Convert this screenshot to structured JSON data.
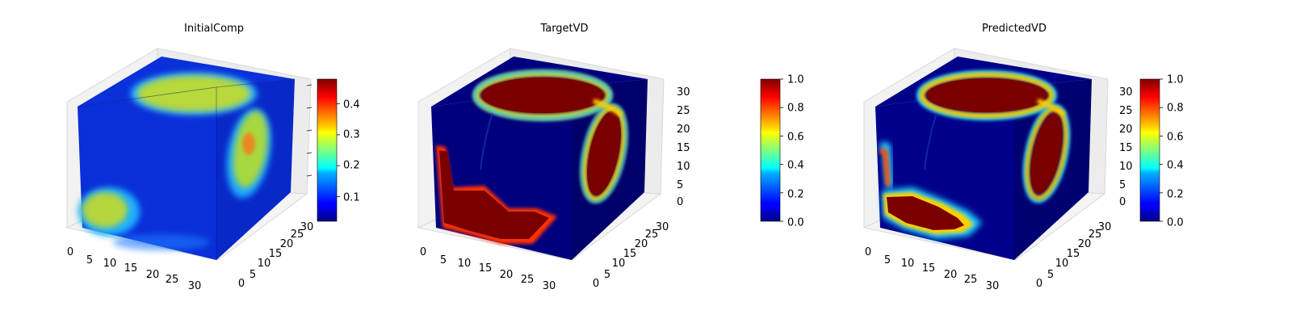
{
  "chart_data": [
    {
      "type": "voxel-3d",
      "title": "InitialComp",
      "x_ticks": [
        "0",
        "5",
        "10",
        "15",
        "20",
        "25",
        "30"
      ],
      "y_ticks": [
        "0",
        "5",
        "10",
        "15",
        "20",
        "25",
        "30"
      ],
      "z_ticks": [],
      "xlim": [
        0,
        32
      ],
      "ylim": [
        0,
        32
      ],
      "zlim": [
        0,
        32
      ],
      "colormap": "jet",
      "colorbar": {
        "ticks": [
          "0.1",
          "0.2",
          "0.3",
          "0.4"
        ],
        "tick_values": [
          0.1,
          0.2,
          0.3,
          0.4
        ],
        "range": [
          0.02,
          0.48
        ]
      },
      "features": [
        {
          "face": "top",
          "shape": "ellipse",
          "value": 0.33
        },
        {
          "face": "right",
          "shape": "ellipse",
          "value": 0.38
        },
        {
          "face": "front",
          "shape": "blob",
          "value": 0.3
        }
      ],
      "background_value": 0.05
    },
    {
      "type": "voxel-3d",
      "title": "TargetVD",
      "x_ticks": [
        "0",
        "5",
        "10",
        "15",
        "20",
        "25",
        "30"
      ],
      "y_ticks": [
        "0",
        "5",
        "10",
        "15",
        "20",
        "25",
        "30"
      ],
      "z_ticks": [
        "0",
        "5",
        "10",
        "15",
        "20",
        "25",
        "30"
      ],
      "xlim": [
        0,
        32
      ],
      "ylim": [
        0,
        32
      ],
      "zlim": [
        0,
        32
      ],
      "colormap": "jet",
      "colorbar": {
        "ticks": [
          "0.0",
          "0.2",
          "0.4",
          "0.6",
          "0.8",
          "1.0"
        ],
        "tick_values": [
          0,
          0.2,
          0.4,
          0.6,
          0.8,
          1.0
        ],
        "range": [
          0,
          1
        ]
      },
      "features": [
        {
          "face": "top",
          "shape": "ellipse",
          "value": 1.0
        },
        {
          "face": "right",
          "shape": "ellipse",
          "value": 1.0
        },
        {
          "face": "front",
          "shape": "blob",
          "value": 1.0
        }
      ],
      "background_value": 0.0
    },
    {
      "type": "voxel-3d",
      "title": "PredictedVD",
      "x_ticks": [
        "0",
        "5",
        "10",
        "15",
        "20",
        "25",
        "30"
      ],
      "y_ticks": [
        "0",
        "5",
        "10",
        "15",
        "20",
        "25",
        "30"
      ],
      "z_ticks": [
        "0",
        "5",
        "10",
        "15",
        "20",
        "25",
        "30"
      ],
      "xlim": [
        0,
        32
      ],
      "ylim": [
        0,
        32
      ],
      "zlim": [
        0,
        32
      ],
      "colormap": "jet",
      "colorbar": {
        "ticks": [
          "0.0",
          "0.2",
          "0.4",
          "0.6",
          "0.8",
          "1.0"
        ],
        "tick_values": [
          0,
          0.2,
          0.4,
          0.6,
          0.8,
          1.0
        ],
        "range": [
          0,
          1
        ]
      },
      "features": [
        {
          "face": "top",
          "shape": "ellipse",
          "value": 1.0
        },
        {
          "face": "right",
          "shape": "ellipse",
          "value": 1.0
        },
        {
          "face": "front",
          "shape": "blob",
          "value": 1.0
        }
      ],
      "background_value": 0.0
    }
  ]
}
